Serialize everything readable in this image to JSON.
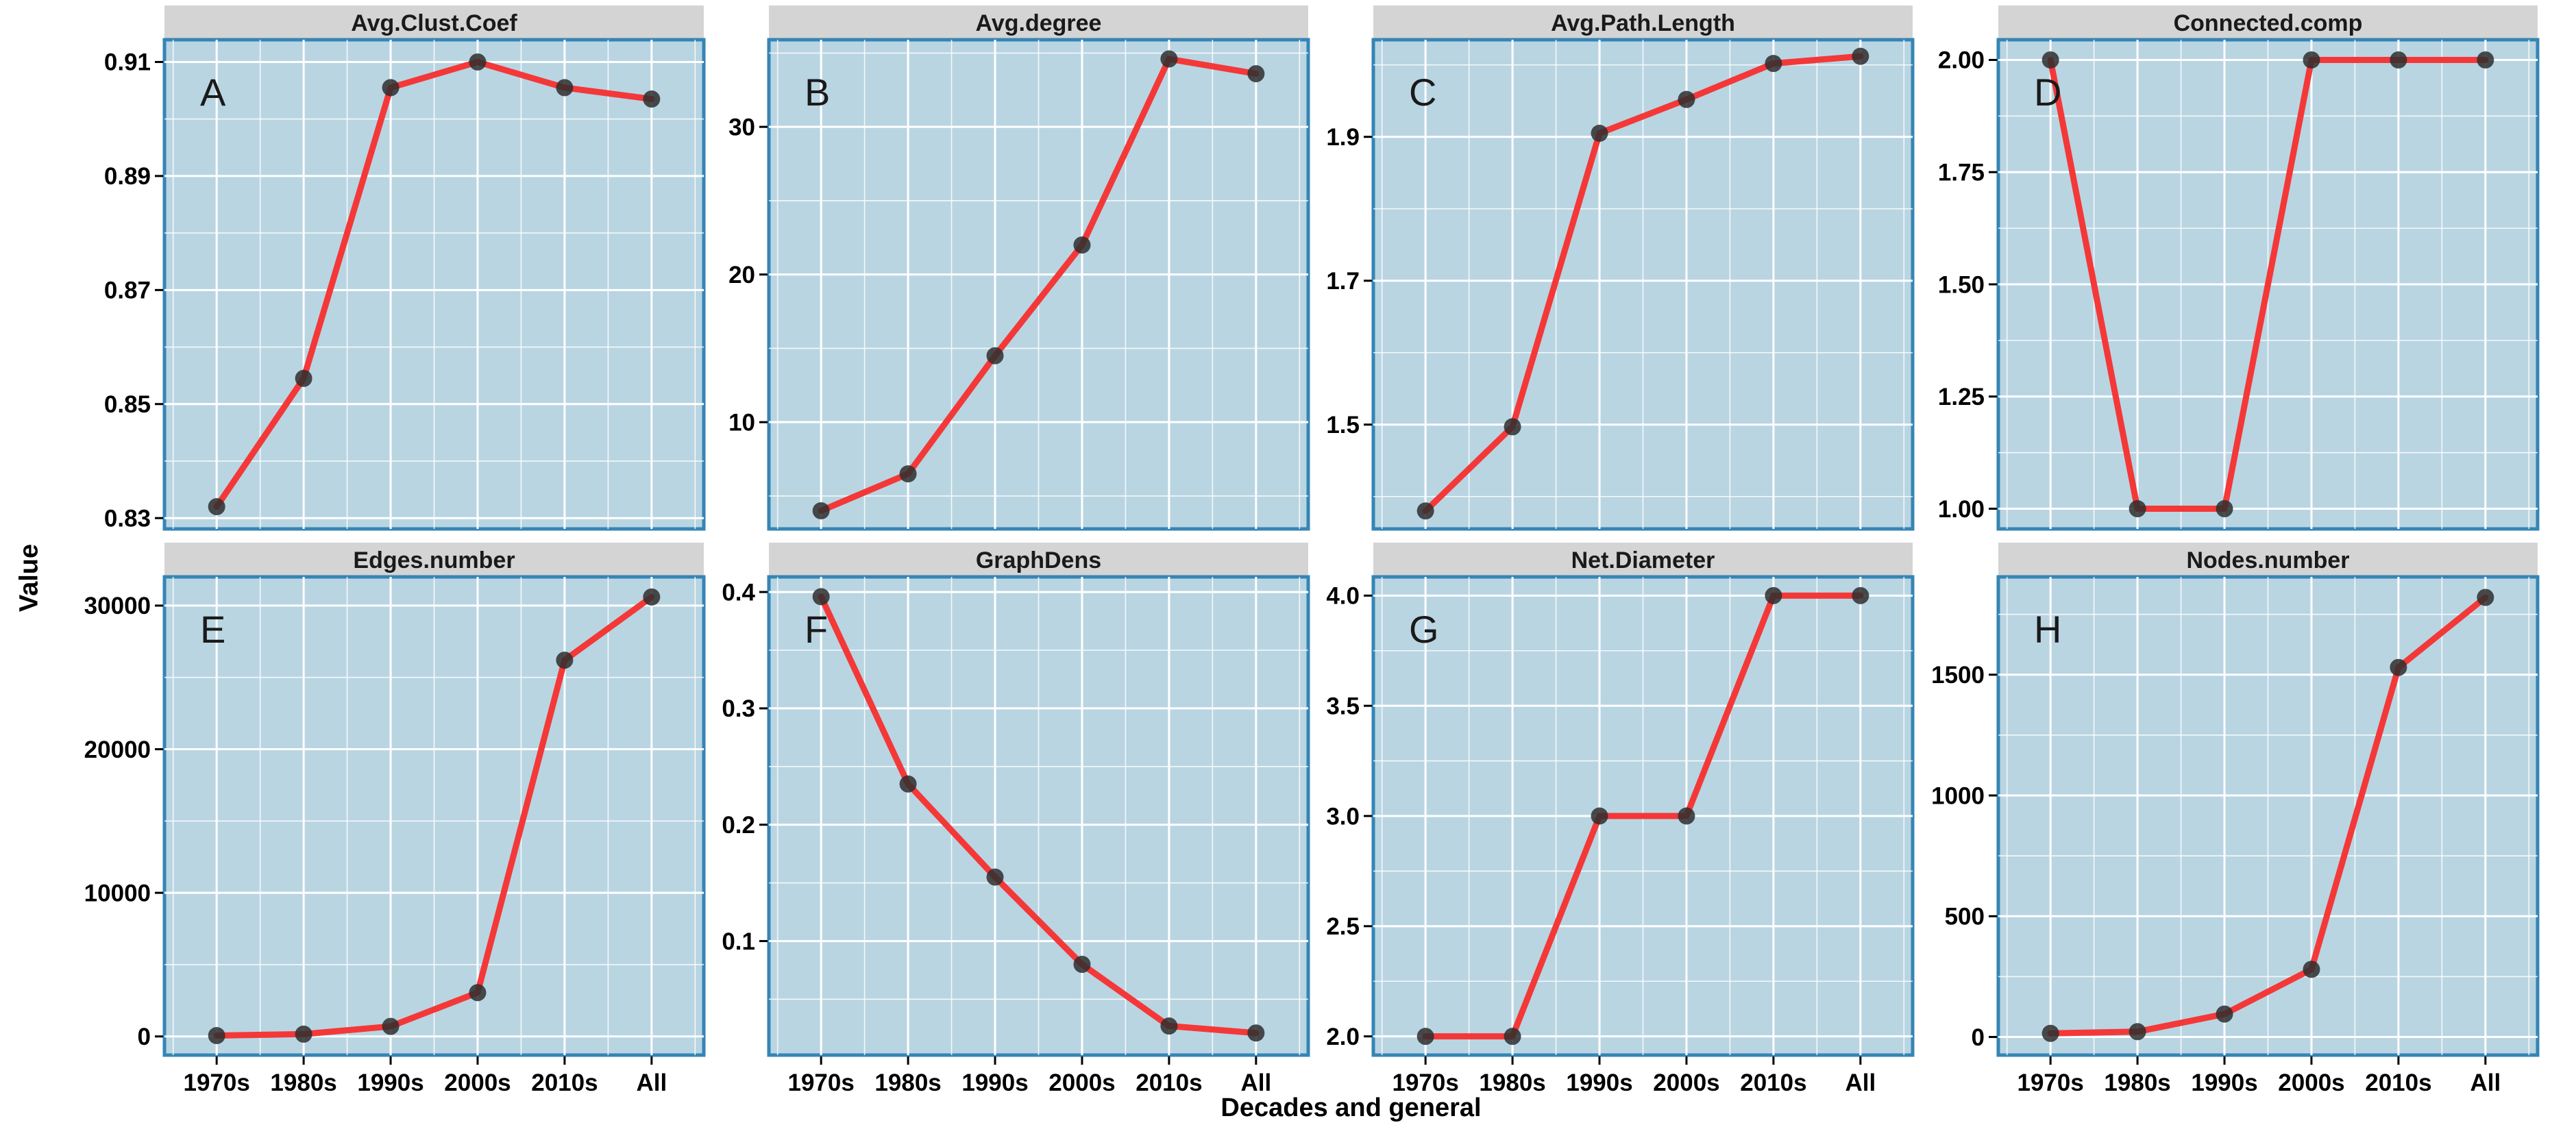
{
  "chart_data": {
    "type": "line",
    "title": "",
    "xlabel": "Decades and general",
    "ylabel": "Value",
    "categories": [
      "1970s",
      "1980s",
      "1990s",
      "2000s",
      "2010s",
      "All"
    ],
    "legend": "none",
    "grid": "white major and minor gridlines on light blue panel",
    "facet_layout": {
      "rows": 2,
      "cols": 4
    },
    "style": {
      "panel_bg": "#b9d5e2",
      "panel_border": "#3585b5",
      "strip_bg": "#d4d4d4",
      "grid_color": "#ffffff",
      "line_color": "#f43838",
      "point_color": "#2e2e2e",
      "text_color": "#000000"
    },
    "panels": [
      {
        "letter": "A",
        "title": "Avg.Clust.Coef",
        "ylim": [
          0.8281,
          0.9139
        ],
        "yticks": [
          0.83,
          0.85,
          0.87,
          0.89,
          0.91
        ],
        "ytick_labels": [
          "0.83",
          "0.85",
          "0.87",
          "0.89",
          "0.91"
        ],
        "values": [
          0.832,
          0.8545,
          0.9055,
          0.91,
          0.9055,
          0.9035
        ]
      },
      {
        "letter": "B",
        "title": "Avg.degree",
        "ylim": [
          2.77,
          35.9
        ],
        "yticks": [
          10,
          20,
          30
        ],
        "ytick_labels": [
          "10",
          "20",
          "30"
        ],
        "values": [
          4.0,
          6.5,
          14.5,
          22.0,
          34.6,
          33.6
        ]
      },
      {
        "letter": "C",
        "title": "Avg.Path.Length",
        "ylim": [
          1.355,
          2.035
        ],
        "yticks": [
          1.5,
          1.7,
          1.9
        ],
        "ytick_labels": [
          "1.5",
          "1.7",
          "1.9"
        ],
        "values": [
          1.38,
          1.497,
          1.905,
          1.952,
          2.002,
          2.012
        ]
      },
      {
        "letter": "D",
        "title": "Connected.comp",
        "ylim": [
          0.955,
          2.045
        ],
        "yticks": [
          1.0,
          1.25,
          1.5,
          1.75,
          2.0
        ],
        "ytick_labels": [
          "1.00",
          "1.25",
          "1.50",
          "1.75",
          "2.00"
        ],
        "values": [
          2,
          1,
          1,
          2,
          2,
          2
        ]
      },
      {
        "letter": "E",
        "title": "Edges.number",
        "ylim": [
          -1300,
          32000
        ],
        "yticks": [
          0,
          10000,
          20000,
          30000
        ],
        "ytick_labels": [
          "0",
          "10000",
          "20000",
          "30000"
        ],
        "values": [
          60,
          160,
          700,
          3050,
          26200,
          30600
        ]
      },
      {
        "letter": "F",
        "title": "GraphDens",
        "ylim": [
          0.002,
          0.413
        ],
        "yticks": [
          0.1,
          0.2,
          0.3,
          0.4
        ],
        "ytick_labels": [
          "0.1",
          "0.2",
          "0.3",
          "0.4"
        ],
        "values": [
          0.396,
          0.235,
          0.155,
          0.08,
          0.027,
          0.021
        ]
      },
      {
        "letter": "G",
        "title": "Net.Diameter",
        "ylim": [
          1.915,
          4.085
        ],
        "yticks": [
          2.0,
          2.5,
          3.0,
          3.5,
          4.0
        ],
        "ytick_labels": [
          "2.0",
          "2.5",
          "3.0",
          "3.5",
          "4.0"
        ],
        "values": [
          2,
          2,
          3,
          3,
          4,
          4
        ]
      },
      {
        "letter": "H",
        "title": "Nodes.number",
        "ylim": [
          -75,
          1905
        ],
        "yticks": [
          0,
          500,
          1000,
          1500
        ],
        "ytick_labels": [
          "0",
          "500",
          "1000",
          "1500"
        ],
        "values": [
          15,
          22,
          95,
          280,
          1530,
          1820
        ]
      }
    ]
  }
}
